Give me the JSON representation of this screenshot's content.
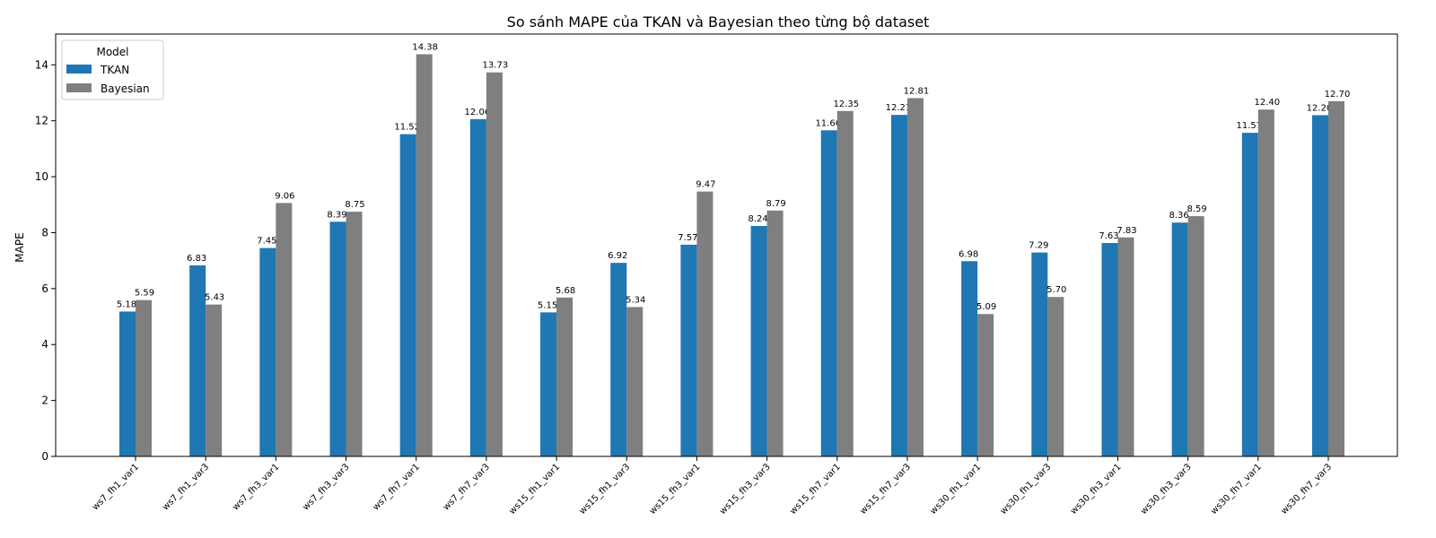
{
  "chart_data": {
    "type": "bar",
    "title": "So sánh MAPE của TKAN và Bayesian theo từng bộ dataset",
    "xlabel": "",
    "ylabel": "MAPE",
    "ylim": [
      0,
      15.1
    ],
    "yticks": [
      0,
      2,
      4,
      6,
      8,
      10,
      12,
      14
    ],
    "grid": false,
    "legend": {
      "title": "Model",
      "position": "top-left"
    },
    "categories": [
      "ws7_fh1_var1",
      "ws7_fh1_var3",
      "ws7_fh3_var1",
      "ws7_fh3_var3",
      "ws7_fh7_var1",
      "ws7_fh7_var3",
      "ws15_fh1_var1",
      "ws15_fh1_var3",
      "ws15_fh3_var1",
      "ws15_fh3_var3",
      "ws15_fh7_var1",
      "ws15_fh7_var3",
      "ws30_fh1_var1",
      "ws30_fh1_var3",
      "ws30_fh3_var1",
      "ws30_fh3_var3",
      "ws30_fh7_var1",
      "ws30_fh7_var3"
    ],
    "series": [
      {
        "name": "TKAN",
        "color": "#1f77b4",
        "values": [
          5.18,
          6.83,
          7.45,
          8.39,
          11.52,
          12.06,
          5.15,
          6.92,
          7.57,
          8.24,
          11.66,
          12.21,
          6.98,
          7.29,
          7.63,
          8.36,
          11.57,
          12.2
        ]
      },
      {
        "name": "Bayesian",
        "color": "#7f7f7f",
        "values": [
          5.59,
          5.43,
          9.06,
          8.75,
          14.38,
          13.73,
          5.68,
          5.34,
          9.47,
          8.79,
          12.35,
          12.81,
          5.09,
          5.7,
          7.83,
          8.59,
          12.4,
          12.7
        ]
      }
    ]
  }
}
